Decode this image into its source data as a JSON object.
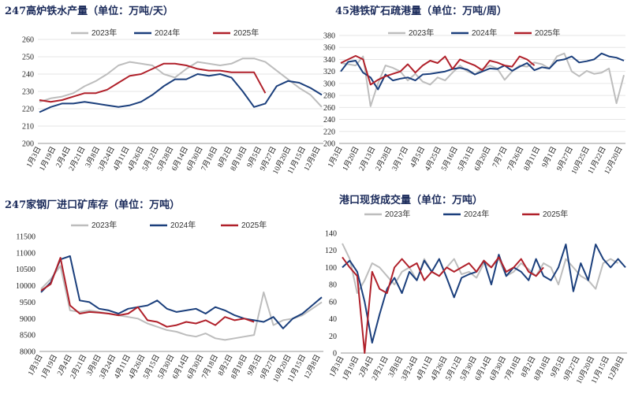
{
  "colors": {
    "2023": "#bdbdbd",
    "2024": "#1b3f7c",
    "2025": "#b0202a"
  },
  "chart_data": [
    {
      "type": "line",
      "title": "247高炉铁水产量（单位：万吨/天）",
      "ylim": [
        200,
        260
      ],
      "yticks": [
        200,
        210,
        220,
        230,
        240,
        250,
        260
      ],
      "grid": true,
      "legend": "top-center",
      "x_labels": [
        "1月3日",
        "1月19日",
        "2月4日",
        "2月21日",
        "3月8日",
        "3月24日",
        "4月11日",
        "4月26日",
        "5月12日",
        "5月28日",
        "6月14日",
        "6月30日",
        "7月18日",
        "8月2日",
        "8月18日",
        "9月5日",
        "9月27日",
        "10月20日",
        "11月15日",
        "12月8日"
      ],
      "series": [
        {
          "name": "2023年",
          "color_key": "2023",
          "values": [
            224,
            226,
            227,
            229,
            233,
            236,
            240,
            245,
            247,
            246,
            245,
            240,
            238,
            243,
            247,
            246,
            245,
            246,
            249,
            249,
            247,
            242,
            237,
            232,
            228,
            221
          ]
        },
        {
          "name": "2024年",
          "color_key": "2024",
          "values": [
            218,
            221,
            223,
            223,
            224,
            223,
            222,
            221,
            222,
            224,
            228,
            233,
            237,
            237,
            240,
            239,
            240,
            238,
            230,
            221,
            223,
            233,
            236,
            235,
            232,
            228
          ]
        },
        {
          "name": "2025年",
          "color_key": "2025",
          "values": [
            225,
            224,
            225,
            227,
            229,
            229,
            231,
            235,
            239,
            240,
            243,
            246,
            246,
            245,
            243,
            242,
            242,
            241,
            241,
            241,
            229
          ]
        }
      ]
    },
    {
      "type": "line",
      "title": "45港铁矿石疏港量（单位：万吨/周）",
      "ylim": [
        200,
        380
      ],
      "yticks": [
        200,
        220,
        240,
        260,
        280,
        300,
        320,
        340,
        360,
        380
      ],
      "grid": true,
      "legend": "top-center",
      "x_labels": [
        "1月3日",
        "1月20日",
        "2月13日",
        "2月28日",
        "3月17日",
        "4月5日",
        "4月25日",
        "5月16日",
        "5月31日",
        "6月20日",
        "7月7日",
        "7月26日",
        "8月11日",
        "9月1日",
        "9月27日",
        "10月25日",
        "11月22日",
        "12月20日"
      ],
      "series": [
        {
          "name": "2023年",
          "color_key": "2023",
          "values": [
            334,
            332,
            330,
            345,
            262,
            300,
            330,
            326,
            320,
            305,
            316,
            303,
            298,
            310,
            305,
            318,
            330,
            320,
            315,
            324,
            330,
            325,
            306,
            320,
            330,
            328,
            335,
            332,
            325,
            345,
            350,
            320,
            312,
            321,
            316,
            318,
            325,
            267,
            314
          ]
        },
        {
          "name": "2024年",
          "color_key": "2024",
          "values": [
            320,
            336,
            338,
            318,
            310,
            290,
            315,
            305,
            308,
            310,
            305,
            315,
            316,
            318,
            320,
            324,
            326,
            323,
            315,
            320,
            325,
            324,
            330,
            321,
            328,
            334,
            322,
            327,
            325,
            338,
            340,
            345,
            335,
            337,
            340,
            350,
            345,
            343,
            338
          ]
        },
        {
          "name": "2025年",
          "color_key": "2025",
          "values": [
            334,
            340,
            346,
            340,
            298,
            306,
            312,
            316,
            320,
            332,
            318,
            330,
            338,
            334,
            345,
            324,
            340,
            335,
            330,
            322,
            338,
            335,
            330,
            328,
            345,
            340,
            330
          ]
        }
      ]
    },
    {
      "type": "line",
      "title": "247家钢厂进口矿库存（单位：万吨）",
      "ylim": [
        8000,
        11500
      ],
      "yticks": [
        8000,
        8500,
        9000,
        9500,
        10000,
        10500,
        11000,
        11500
      ],
      "grid": false,
      "legend": "top-center",
      "x_labels": [
        "1月3日",
        "1月19日",
        "2月4日",
        "2月21日",
        "3月8日",
        "3月24日",
        "4月11日",
        "4月26日",
        "5月15日",
        "5月30日",
        "6月14日",
        "6月30日",
        "7月18日",
        "8月2日",
        "8月18日",
        "9月5日",
        "9月27日",
        "10月20日",
        "11月15日",
        "12月8日"
      ],
      "series": [
        {
          "name": "2023年",
          "color_key": "2023",
          "values": [
            9900,
            10200,
            10600,
            9250,
            9200,
            9250,
            9200,
            9150,
            9100,
            9050,
            9000,
            8850,
            8750,
            8650,
            8600,
            8500,
            8450,
            8550,
            8400,
            8350,
            8400,
            8450,
            8500,
            9800,
            8800,
            8950,
            9000,
            9100,
            9300,
            9500
          ]
        },
        {
          "name": "2024年",
          "color_key": "2024",
          "values": [
            9800,
            10100,
            10800,
            10900,
            9550,
            9500,
            9300,
            9250,
            9150,
            9300,
            9350,
            9400,
            9550,
            9300,
            9200,
            9250,
            9300,
            9150,
            9350,
            9250,
            9100,
            9000,
            8950,
            8900,
            9050,
            8700,
            9000,
            9150,
            9400,
            9650
          ]
        },
        {
          "name": "2025年",
          "color_key": "2025",
          "values": [
            9850,
            10050,
            10850,
            9400,
            9150,
            9200,
            9180,
            9150,
            9100,
            9150,
            9350,
            8950,
            8900,
            8750,
            8800,
            8900,
            8850,
            8950,
            8800,
            9050,
            8950,
            9000,
            8900
          ]
        }
      ]
    },
    {
      "type": "line",
      "title": "港口现货成交量（单位：万吨）",
      "ylim": [
        0,
        140
      ],
      "yticks": [
        0,
        20,
        40,
        60,
        80,
        100,
        120,
        140
      ],
      "grid": false,
      "legend": "top-center",
      "x_labels": [
        "1月3日",
        "1月19日",
        "2月4日",
        "2月21日",
        "3月8日",
        "3月24日",
        "4月11日",
        "4月26日",
        "5月12日",
        "5月30日",
        "6月14日",
        "6月30日",
        "7月18日",
        "8月2日",
        "8月18日",
        "9月5日",
        "9月27日",
        "10月20日",
        "11月15日",
        "12月8日"
      ],
      "series": [
        {
          "name": "2023年",
          "color_key": "2023",
          "values": [
            128,
            110,
            70,
            85,
            105,
            100,
            90,
            80,
            95,
            100,
            85,
            110,
            95,
            90,
            100,
            110,
            92,
            95,
            88,
            105,
            100,
            110,
            90,
            95,
            105,
            98,
            90,
            105,
            100,
            80,
            110,
            100,
            90,
            85,
            75,
            105,
            110,
            105
          ]
        },
        {
          "name": "2024年",
          "color_key": "2024",
          "values": [
            100,
            108,
            95,
            60,
            12,
            45,
            75,
            88,
            70,
            95,
            85,
            108,
            95,
            110,
            88,
            65,
            88,
            92,
            95,
            108,
            80,
            115,
            90,
            100,
            95,
            85,
            110,
            90,
            85,
            100,
            127,
            72,
            105,
            85,
            127,
            110,
            100,
            110,
            100
          ]
        },
        {
          "name": "2025年",
          "color_key": "2025",
          "values": [
            112,
            100,
            90,
            0,
            95,
            75,
            70,
            100,
            110,
            100,
            105,
            85,
            95,
            90,
            100,
            95,
            100,
            105,
            95,
            108,
            100,
            112,
            95,
            100,
            110,
            95,
            90,
            100
          ]
        }
      ]
    }
  ]
}
